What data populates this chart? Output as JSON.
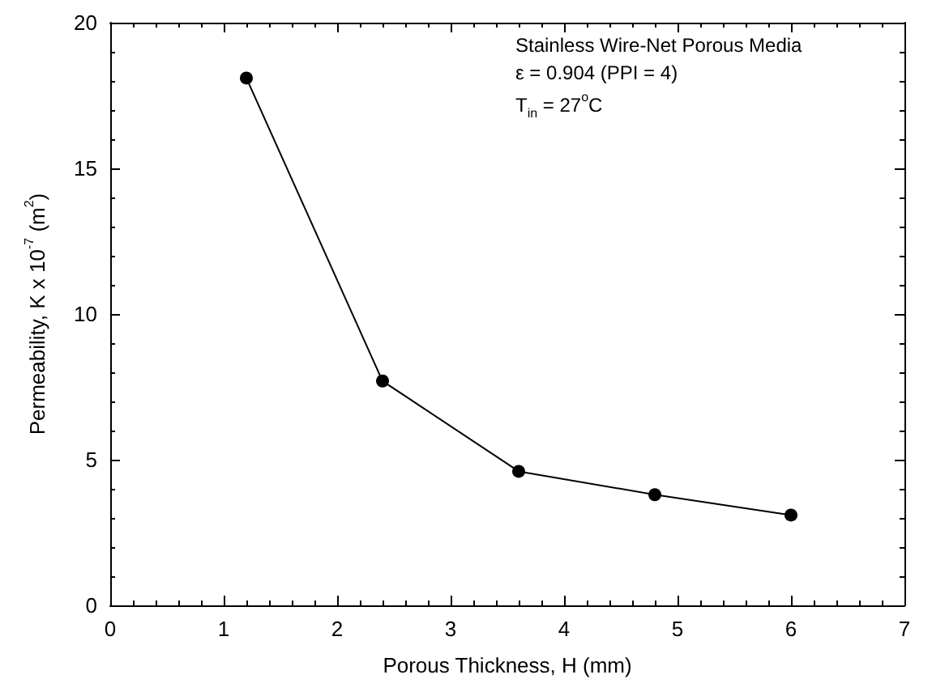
{
  "chart_data": {
    "type": "line",
    "xlabel": "Porous Thickness, H (mm)",
    "ylabel": "Permeability, K x 10$^{-7}$ (m$^{2}$)",
    "x": [
      1.2,
      2.4,
      3.6,
      4.8,
      6.0
    ],
    "series": [
      {
        "color": "#000000",
        "values": [
          18.1,
          7.7,
          4.6,
          3.8,
          3.1
        ]
      }
    ],
    "xlim": [
      0,
      7
    ],
    "xticks": [
      0,
      1,
      2,
      3,
      4,
      5,
      6,
      7
    ],
    "ylim": [
      0,
      20
    ],
    "yticks": [
      0,
      5,
      10,
      15,
      20
    ],
    "grid": false,
    "marker": "circle",
    "line_style": "solid",
    "annotations": [
      "Stainless Wire-Net Porous Media",
      "ε = 0.904 (PPI = 4)",
      "T$_{in}$ = 27$^{o}$C"
    ]
  }
}
